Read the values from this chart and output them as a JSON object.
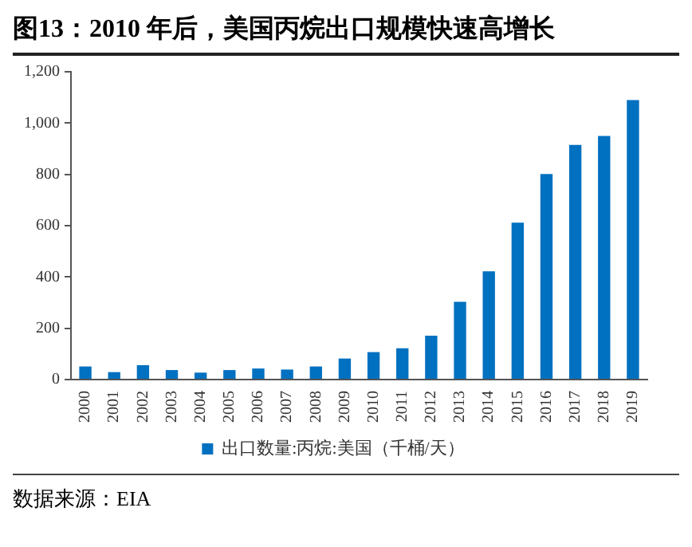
{
  "chart_data": {
    "type": "bar",
    "title": "图13：2010 年后，美国丙烷出口规模快速高增长",
    "categories": [
      "2000",
      "2001",
      "2002",
      "2003",
      "2004",
      "2005",
      "2006",
      "2007",
      "2008",
      "2009",
      "2010",
      "2011",
      "2012",
      "2013",
      "2014",
      "2015",
      "2016",
      "2017",
      "2018",
      "2019"
    ],
    "series": [
      {
        "name": "出口数量:丙烷:美国（千桶/天）",
        "color": "#0070c0",
        "values": [
          51,
          29,
          56,
          37,
          27,
          37,
          43,
          39,
          51,
          82,
          107,
          122,
          171,
          303,
          422,
          612,
          801,
          915,
          950,
          1090
        ]
      }
    ],
    "ylim": [
      0,
      1200
    ],
    "yticks": [
      {
        "value": 0,
        "label": "0"
      },
      {
        "value": 200,
        "label": "200"
      },
      {
        "value": 400,
        "label": "400"
      },
      {
        "value": 600,
        "label": "600"
      },
      {
        "value": 800,
        "label": "800"
      },
      {
        "value": 1000,
        "label": "1,000"
      },
      {
        "value": 1200,
        "label": "1,200"
      }
    ],
    "grid": false,
    "legend": "bottom",
    "annotations": [
      "数据来源：EIA"
    ]
  }
}
